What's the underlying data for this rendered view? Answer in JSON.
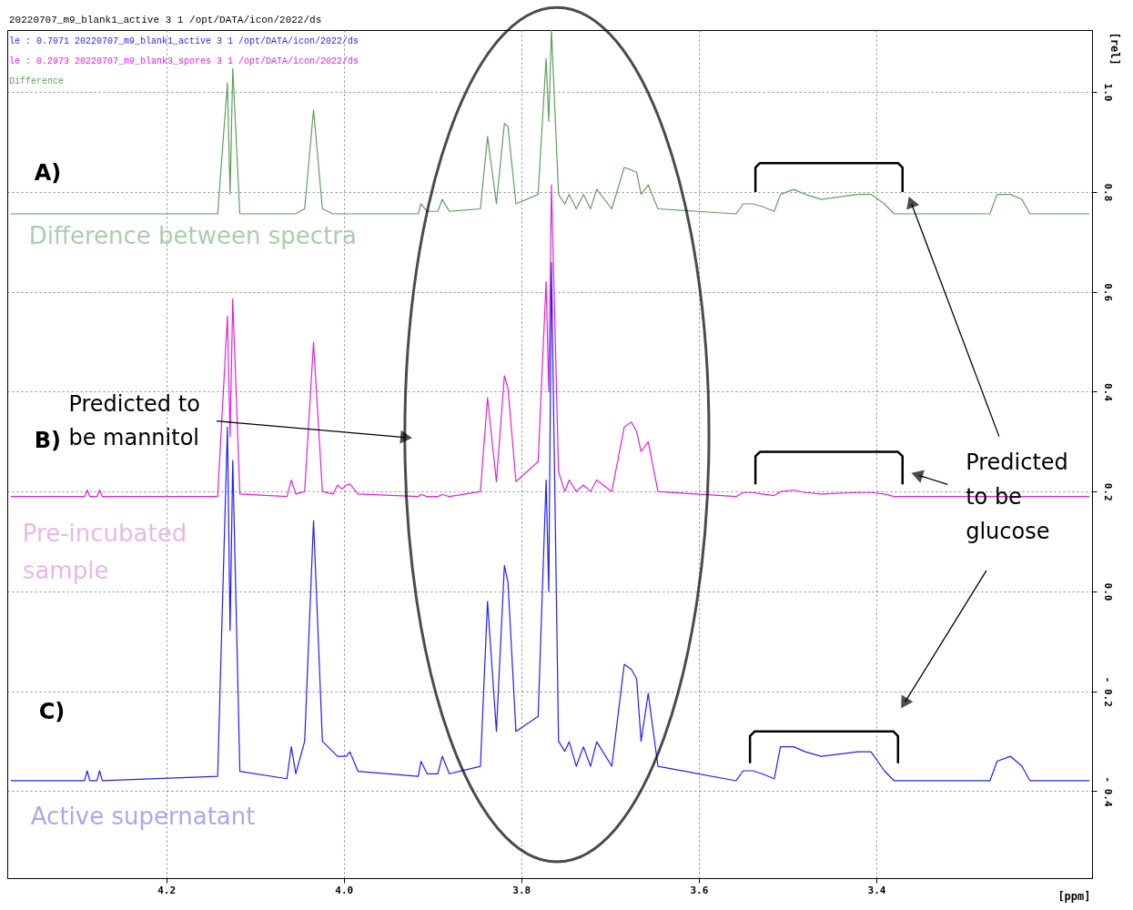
{
  "chart_data": {
    "type": "line",
    "title": "20220707_m9_blank1_active  3  1  /opt/DATA/icon/2022/ds",
    "xlabel": "[ppm]",
    "ylabel": "[rel]",
    "x": [
      4.375,
      4.292,
      4.289,
      4.286,
      4.278,
      4.275,
      4.272,
      4.142,
      4.131,
      4.128,
      4.125,
      4.117,
      4.064,
      4.059,
      4.054,
      4.044,
      4.034,
      4.024,
      4.012,
      4.007,
      4.002,
      3.997,
      3.993,
      3.984,
      3.916,
      3.913,
      3.906,
      3.894,
      3.889,
      3.881,
      3.846,
      3.838,
      3.828,
      3.819,
      3.815,
      3.806,
      3.781,
      3.772,
      3.769,
      3.766,
      3.758,
      3.751,
      3.746,
      3.738,
      3.73,
      3.722,
      3.715,
      3.698,
      3.684,
      3.676,
      3.67,
      3.665,
      3.657,
      3.646,
      3.558,
      3.55,
      3.539,
      3.529,
      3.515,
      3.508,
      3.493,
      3.48,
      3.462,
      3.421,
      3.406,
      3.391,
      3.38,
      3.272,
      3.264,
      3.249,
      3.236,
      3.227,
      3.16
    ],
    "series": [
      {
        "name": "le : 0.7071   20220707_m9_blank1_active  3  1  /opt/DATA/icon/2022/ds",
        "color": "#1f1fff",
        "values": [
          -0.379,
          -0.379,
          -0.359,
          -0.379,
          -0.379,
          -0.359,
          -0.379,
          -0.37,
          0.329,
          -0.078,
          0.262,
          -0.36,
          -0.375,
          -0.311,
          -0.365,
          -0.3,
          0.142,
          -0.3,
          -0.321,
          -0.33,
          -0.33,
          -0.33,
          -0.321,
          -0.36,
          -0.37,
          -0.34,
          -0.365,
          -0.365,
          -0.33,
          -0.365,
          -0.35,
          -0.02,
          -0.28,
          0.052,
          0.019,
          -0.28,
          -0.25,
          0.223,
          0.0,
          0.659,
          -0.3,
          -0.32,
          -0.301,
          -0.35,
          -0.311,
          -0.35,
          -0.301,
          -0.35,
          -0.146,
          -0.156,
          -0.175,
          -0.3,
          -0.204,
          -0.35,
          -0.379,
          -0.359,
          -0.359,
          -0.365,
          -0.375,
          -0.311,
          -0.311,
          -0.321,
          -0.33,
          -0.321,
          -0.321,
          -0.359,
          -0.379,
          -0.379,
          -0.34,
          -0.33,
          -0.35,
          -0.379,
          -0.379
        ]
      },
      {
        "name": "le : 0.2973   20220707_m9_blank3_spores  3  1  /opt/DATA/icon/2022/ds",
        "color": "#e020e0",
        "values": [
          0.19,
          0.19,
          0.203,
          0.19,
          0.19,
          0.203,
          0.19,
          0.19,
          0.551,
          0.31,
          0.586,
          0.195,
          0.19,
          0.223,
          0.195,
          0.2,
          0.499,
          0.2,
          0.195,
          0.213,
          0.205,
          0.213,
          0.215,
          0.195,
          0.19,
          0.194,
          0.19,
          0.19,
          0.194,
          0.19,
          0.2,
          0.388,
          0.22,
          0.432,
          0.407,
          0.22,
          0.26,
          0.62,
          0.4,
          0.814,
          0.24,
          0.2,
          0.223,
          0.2,
          0.213,
          0.2,
          0.223,
          0.2,
          0.329,
          0.339,
          0.32,
          0.28,
          0.3,
          0.2,
          0.19,
          0.198,
          0.198,
          0.195,
          0.192,
          0.2,
          0.203,
          0.198,
          0.195,
          0.198,
          0.198,
          0.195,
          0.19,
          0.19,
          0.19,
          0.19,
          0.19,
          0.19,
          0.19
        ]
      },
      {
        "name": "Difference",
        "color": "#5f9f5f",
        "values": [
          0.756,
          0.756,
          0.756,
          0.756,
          0.756,
          0.756,
          0.756,
          0.756,
          1.018,
          0.795,
          1.047,
          0.756,
          0.756,
          0.756,
          0.756,
          0.766,
          0.964,
          0.766,
          0.756,
          0.756,
          0.756,
          0.756,
          0.756,
          0.756,
          0.756,
          0.776,
          0.761,
          0.761,
          0.785,
          0.761,
          0.766,
          0.911,
          0.776,
          0.937,
          0.931,
          0.776,
          0.795,
          1.067,
          0.941,
          1.124,
          0.795,
          0.776,
          0.795,
          0.766,
          0.795,
          0.766,
          0.805,
          0.766,
          0.849,
          0.844,
          0.839,
          0.795,
          0.814,
          0.766,
          0.756,
          0.776,
          0.776,
          0.771,
          0.761,
          0.795,
          0.805,
          0.795,
          0.785,
          0.795,
          0.795,
          0.776,
          0.756,
          0.756,
          0.795,
          0.795,
          0.785,
          0.756,
          0.756
        ]
      }
    ],
    "xlim": [
      4.379,
      3.157
    ],
    "ylim": [
      -0.574,
      1.124
    ],
    "xticks": [
      {
        "value": 4.2,
        "label": "4.2"
      },
      {
        "value": 4.0,
        "label": "4.0"
      },
      {
        "value": 3.8,
        "label": "3.8"
      },
      {
        "value": 3.6,
        "label": "3.6"
      },
      {
        "value": 3.4,
        "label": "3.4"
      }
    ],
    "yticks": [
      {
        "value": 1.0,
        "label": "1.0"
      },
      0.8,
      0.6,
      0.4,
      0.2,
      {
        "value": 0.0,
        "label": "0.0"
      },
      {
        "value": -0.2,
        "label": "- 0.2"
      },
      {
        "value": -0.4,
        "label": "- 0.4"
      }
    ],
    "grid": true,
    "legend": "top left",
    "annotations": [
      "A)",
      "B)",
      "C)",
      "Difference between spectra",
      "Pre-incubated sample",
      "Active supernatant",
      "Predicted to be mannitol",
      "Predicted to be glucose"
    ]
  }
}
